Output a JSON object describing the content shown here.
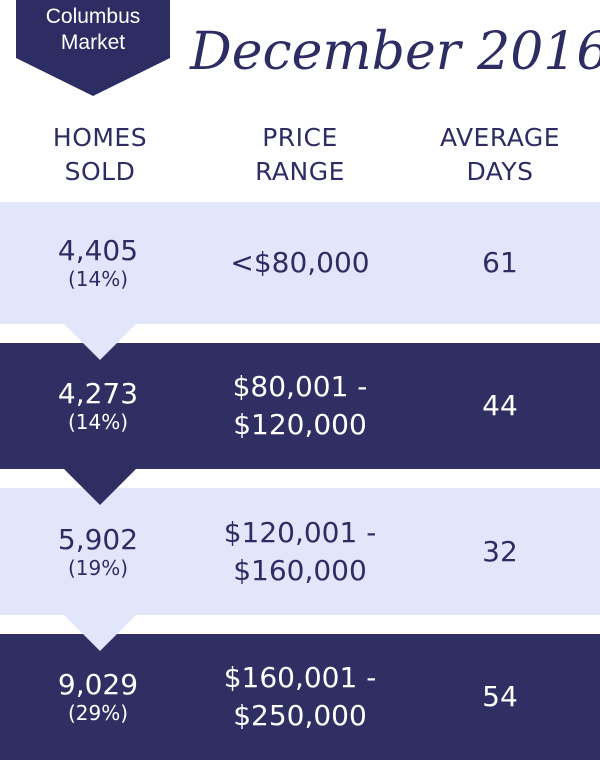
{
  "badge": {
    "line1": "Columbus",
    "line2": "Market"
  },
  "month_title": "December 2016",
  "colors": {
    "navy": "#2e2d63",
    "light_band": "#e1e6fb",
    "white": "#ffffff"
  },
  "chart_data": {
    "type": "table",
    "columns": [
      {
        "line1": "HOMES",
        "line2": "SOLD"
      },
      {
        "line1": "PRICE",
        "line2": "RANGE"
      },
      {
        "line1": "AVERAGE",
        "line2": "DAYS"
      }
    ],
    "rows": [
      {
        "homes_sold": "4,405",
        "share": "(14%)",
        "range_line1": "<$80,000",
        "range_line2": "",
        "average_days": "61"
      },
      {
        "homes_sold": "4,273",
        "share": "(14%)",
        "range_line1": "$80,001 -",
        "range_line2": "$120,000",
        "average_days": "44"
      },
      {
        "homes_sold": "5,902",
        "share": "(19%)",
        "range_line1": "$120,001 -",
        "range_line2": "$160,000",
        "average_days": "32"
      },
      {
        "homes_sold": "9,029",
        "share": "(29%)",
        "range_line1": "$160,001 -",
        "range_line2": "$250,000",
        "average_days": "54"
      }
    ]
  }
}
